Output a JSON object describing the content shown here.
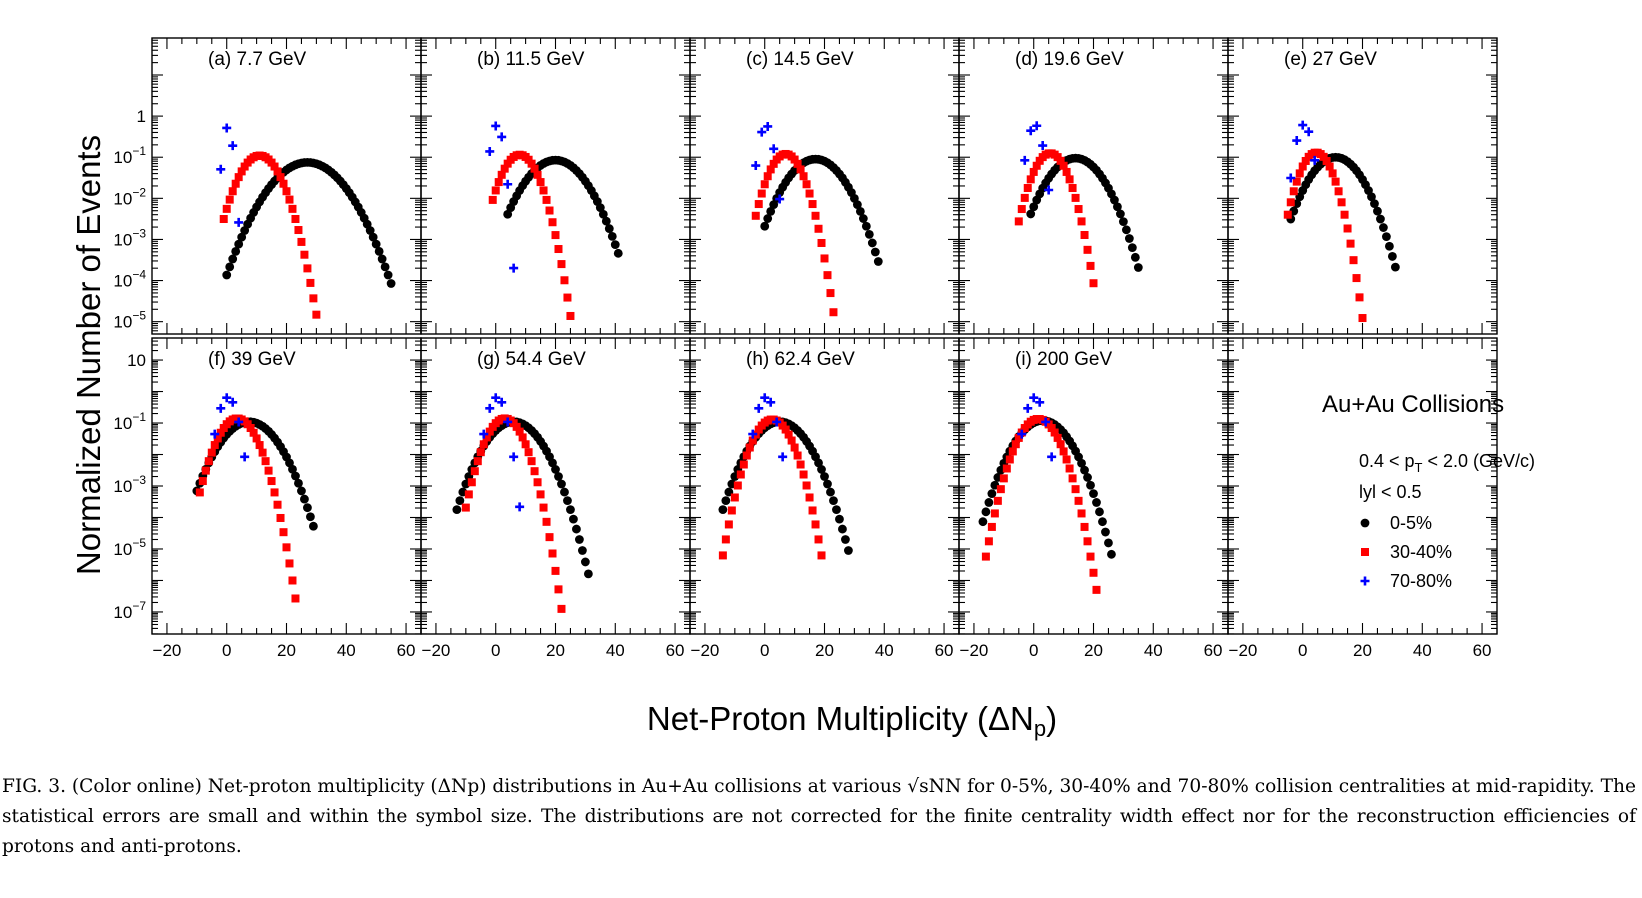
{
  "chart_data": {
    "type": "scatter",
    "y_title": "Normalized Number of Events",
    "x_title": "Net-Proton Multiplicity (ΔN",
    "x_title_sub": "p",
    "x_title_close": ")",
    "xlim": [
      -25,
      65
    ],
    "x_ticks": [
      -20,
      0,
      20,
      40,
      60
    ],
    "x_tick_labels": [
      "−20",
      "0",
      "20",
      "40",
      "60"
    ],
    "row1_ylim_exp": [
      -5.3,
      1.9
    ],
    "row1_y_ticks": [
      {
        "exp": 0,
        "label": "1"
      },
      {
        "exp": -1,
        "label": "10",
        "sup": "−1"
      },
      {
        "exp": -2,
        "label": "10",
        "sup": "−2"
      },
      {
        "exp": -3,
        "label": "10",
        "sup": "−3"
      },
      {
        "exp": -4,
        "label": "10",
        "sup": "−4"
      },
      {
        "exp": -5,
        "label": "10",
        "sup": "−5"
      }
    ],
    "row2_ylim_exp": [
      -7.7,
      1.7
    ],
    "row2_y_ticks": [
      {
        "exp": 1,
        "label": "10"
      },
      {
        "exp": -1,
        "label": "10",
        "sup": "−1"
      },
      {
        "exp": -3,
        "label": "10",
        "sup": "−3"
      },
      {
        "exp": -5,
        "label": "10",
        "sup": "−5"
      },
      {
        "exp": -7,
        "label": "10",
        "sup": "−7"
      }
    ],
    "series_styles": [
      {
        "name": "0-5%",
        "color": "#000000",
        "marker": "circle"
      },
      {
        "name": "30-40%",
        "color": "#ff0000",
        "marker": "square"
      },
      {
        "name": "70-80%",
        "color": "#0000ff",
        "marker": "plus"
      }
    ],
    "legend": {
      "title": "Au+Au Collisions",
      "cut1_pre": "0.4 < p",
      "cut1_sub": "T",
      "cut1_post": " < 2.0 (GeV/c)",
      "cut2": "lyl < 0.5",
      "entries": [
        "0-5%",
        "30-40%",
        "70-80%"
      ]
    },
    "panels": [
      {
        "label": "(a) 7.7 GeV",
        "series": [
          {
            "name": "0-5%",
            "mean": 27,
            "sigma": 7.6,
            "peak": 0.075,
            "xmin": 0,
            "xmax": 55
          },
          {
            "name": "30-40%",
            "mean": 11,
            "sigma": 4.5,
            "peak": 0.11,
            "xmin": -1,
            "xmax": 31
          },
          {
            "name": "70-80%",
            "mean": 0.4,
            "sigma": 1.1,
            "peak": 0.55,
            "xmin": -2,
            "xmax": 4
          }
        ]
      },
      {
        "label": "(b) 11.5 GeV",
        "series": [
          {
            "name": "0-5%",
            "mean": 20,
            "sigma": 6.5,
            "peak": 0.085,
            "xmin": 4,
            "xmax": 41
          },
          {
            "name": "30-40%",
            "mean": 8,
            "sigma": 4.0,
            "peak": 0.115,
            "xmin": -1,
            "xmax": 27
          },
          {
            "name": "70-80%",
            "mean": 0.4,
            "sigma": 1.4,
            "peak": 0.6,
            "xmin": -2,
            "xmax": 7
          }
        ]
      },
      {
        "label": "(c) 14.5 GeV",
        "series": [
          {
            "name": "0-5%",
            "mean": 17,
            "sigma": 6.2,
            "peak": 0.09,
            "xmin": 0,
            "xmax": 38
          },
          {
            "name": "30-40%",
            "mean": 7,
            "sigma": 3.8,
            "peak": 0.12,
            "xmin": -3,
            "xmax": 23
          },
          {
            "name": "70-80%",
            "mean": 0.4,
            "sigma": 1.6,
            "peak": 0.6,
            "xmin": -3,
            "xmax": 6
          }
        ]
      },
      {
        "label": "(d) 19.6 GeV",
        "series": [
          {
            "name": "0-5%",
            "mean": 14,
            "sigma": 6.0,
            "peak": 0.095,
            "xmin": -1,
            "xmax": 35
          },
          {
            "name": "30-40%",
            "mean": 5.5,
            "sigma": 3.8,
            "peak": 0.125,
            "xmin": -5,
            "xmax": 20
          },
          {
            "name": "70-80%",
            "mean": 0.4,
            "sigma": 1.7,
            "peak": 0.62,
            "xmin": -3,
            "xmax": 5
          }
        ]
      },
      {
        "label": "(e) 27 GeV",
        "series": [
          {
            "name": "0-5%",
            "mean": 11,
            "sigma": 5.7,
            "peak": 0.1,
            "xmin": -4,
            "xmax": 31
          },
          {
            "name": "30-40%",
            "mean": 4.5,
            "sigma": 3.6,
            "peak": 0.13,
            "xmin": -5,
            "xmax": 20
          },
          {
            "name": "70-80%",
            "mean": 0.4,
            "sigma": 1.8,
            "peak": 0.62,
            "xmin": -4,
            "xmax": 5
          }
        ]
      },
      {
        "label": "(f) 39 GeV",
        "series": [
          {
            "name": "0-5%",
            "mean": 7.5,
            "sigma": 5.5,
            "peak": 0.11,
            "xmin": -10,
            "xmax": 29
          },
          {
            "name": "30-40%",
            "mean": 3.5,
            "sigma": 3.8,
            "peak": 0.14,
            "xmin": -9,
            "xmax": 23
          },
          {
            "name": "70-80%",
            "mean": 0.4,
            "sigma": 1.9,
            "peak": 0.65,
            "xmin": -4,
            "xmax": 6
          }
        ]
      },
      {
        "label": "(g) 54.4 GeV",
        "series": [
          {
            "name": "0-5%",
            "mean": 6,
            "sigma": 5.3,
            "peak": 0.11,
            "xmin": -13,
            "xmax": 31
          },
          {
            "name": "30-40%",
            "mean": 3,
            "sigma": 3.6,
            "peak": 0.14,
            "xmin": -10,
            "xmax": 22
          },
          {
            "name": "70-80%",
            "mean": 0.4,
            "sigma": 1.9,
            "peak": 0.65,
            "xmin": -4,
            "xmax": 8
          }
        ]
      },
      {
        "label": "(h) 62.4 GeV",
        "series": [
          {
            "name": "0-5%",
            "mean": 5,
            "sigma": 5.3,
            "peak": 0.11,
            "xmin": -14,
            "xmax": 28
          },
          {
            "name": "30-40%",
            "mean": 2.5,
            "sigma": 3.7,
            "peak": 0.13,
            "xmin": -14,
            "xmax": 19
          },
          {
            "name": "70-80%",
            "mean": 0.4,
            "sigma": 1.9,
            "peak": 0.65,
            "xmin": -4,
            "xmax": 7
          }
        ]
      },
      {
        "label": "(i) 200 GeV",
        "series": [
          {
            "name": "0-5%",
            "mean": 3,
            "sigma": 5.2,
            "peak": 0.12,
            "xmin": -17,
            "xmax": 26
          },
          {
            "name": "30-40%",
            "mean": 1.5,
            "sigma": 3.9,
            "peak": 0.135,
            "xmin": -16,
            "xmax": 21
          },
          {
            "name": "70-80%",
            "mean": 0.4,
            "sigma": 1.9,
            "peak": 0.65,
            "xmin": -4,
            "xmax": 7
          }
        ]
      }
    ]
  },
  "caption": "FIG. 3. (Color online) Net-proton multiplicity (ΔNp) distributions in Au+Au collisions at various √sNN for 0-5%, 30-40% and 70-80% collision centralities at mid-rapidity. The statistical errors are small and within the symbol size. The distributions are not corrected for the finite centrality width effect nor for the reconstruction efficiencies of protons and anti-protons."
}
